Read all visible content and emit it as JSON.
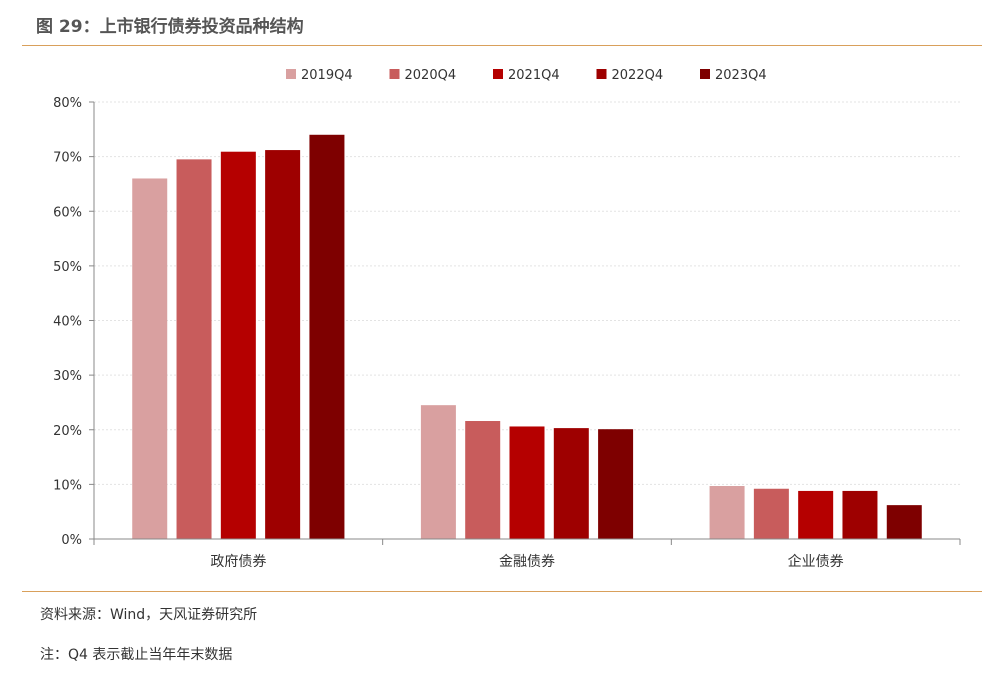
{
  "header": {
    "title": "图 29：上市银行债券投资品种结构"
  },
  "chart_data": {
    "type": "bar",
    "categories": [
      "政府债券",
      "金融债券",
      "企业债券"
    ],
    "series": [
      {
        "name": "2019Q4",
        "color": "#d9a0a0",
        "values": [
          66,
          24.5,
          9.7
        ]
      },
      {
        "name": "2020Q4",
        "color": "#c85c5c",
        "values": [
          69.5,
          21.6,
          9.2
        ]
      },
      {
        "name": "2021Q4",
        "color": "#b50000",
        "values": [
          70.9,
          20.6,
          8.8
        ]
      },
      {
        "name": "2022Q4",
        "color": "#9e0000",
        "values": [
          71.2,
          20.3,
          8.8
        ]
      },
      {
        "name": "2023Q4",
        "color": "#7e0000",
        "values": [
          74.0,
          20.1,
          6.2
        ]
      }
    ],
    "yticks": [
      "0%",
      "10%",
      "20%",
      "30%",
      "40%",
      "50%",
      "60%",
      "70%",
      "80%"
    ],
    "ylim": [
      0,
      80
    ],
    "grid": true,
    "legend_position": "top"
  },
  "footer": {
    "source": "资料来源：Wind，天风证券研究所",
    "note": "注：Q4 表示截止当年年末数据"
  }
}
